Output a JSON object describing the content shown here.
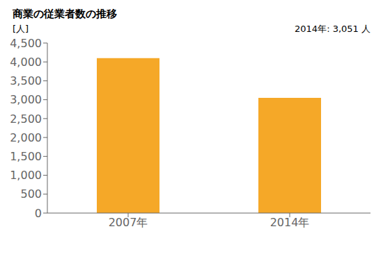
{
  "chart_data": {
    "type": "bar",
    "title": "商業の従業者数の推移",
    "ylabel": "[人]",
    "categories": [
      "2007年",
      "2014年"
    ],
    "values": [
      4100,
      3051
    ],
    "color": "#F5A828",
    "ylim": [
      0,
      4500
    ],
    "yticks": [
      0,
      500,
      {
        "value": 1000,
        "label": "1,000"
      },
      {
        "value": 1500,
        "label": "1,500"
      },
      {
        "value": 2000,
        "label": "2,000"
      },
      {
        "value": 2500,
        "label": "2,500"
      },
      {
        "value": 3000,
        "label": "3,000"
      },
      {
        "value": 3500,
        "label": "3,500"
      },
      {
        "value": 4000,
        "label": "4,000"
      },
      {
        "value": 4500,
        "label": "4,500"
      }
    ],
    "annotation": "2014年: 3,051 人",
    "grid": false
  }
}
